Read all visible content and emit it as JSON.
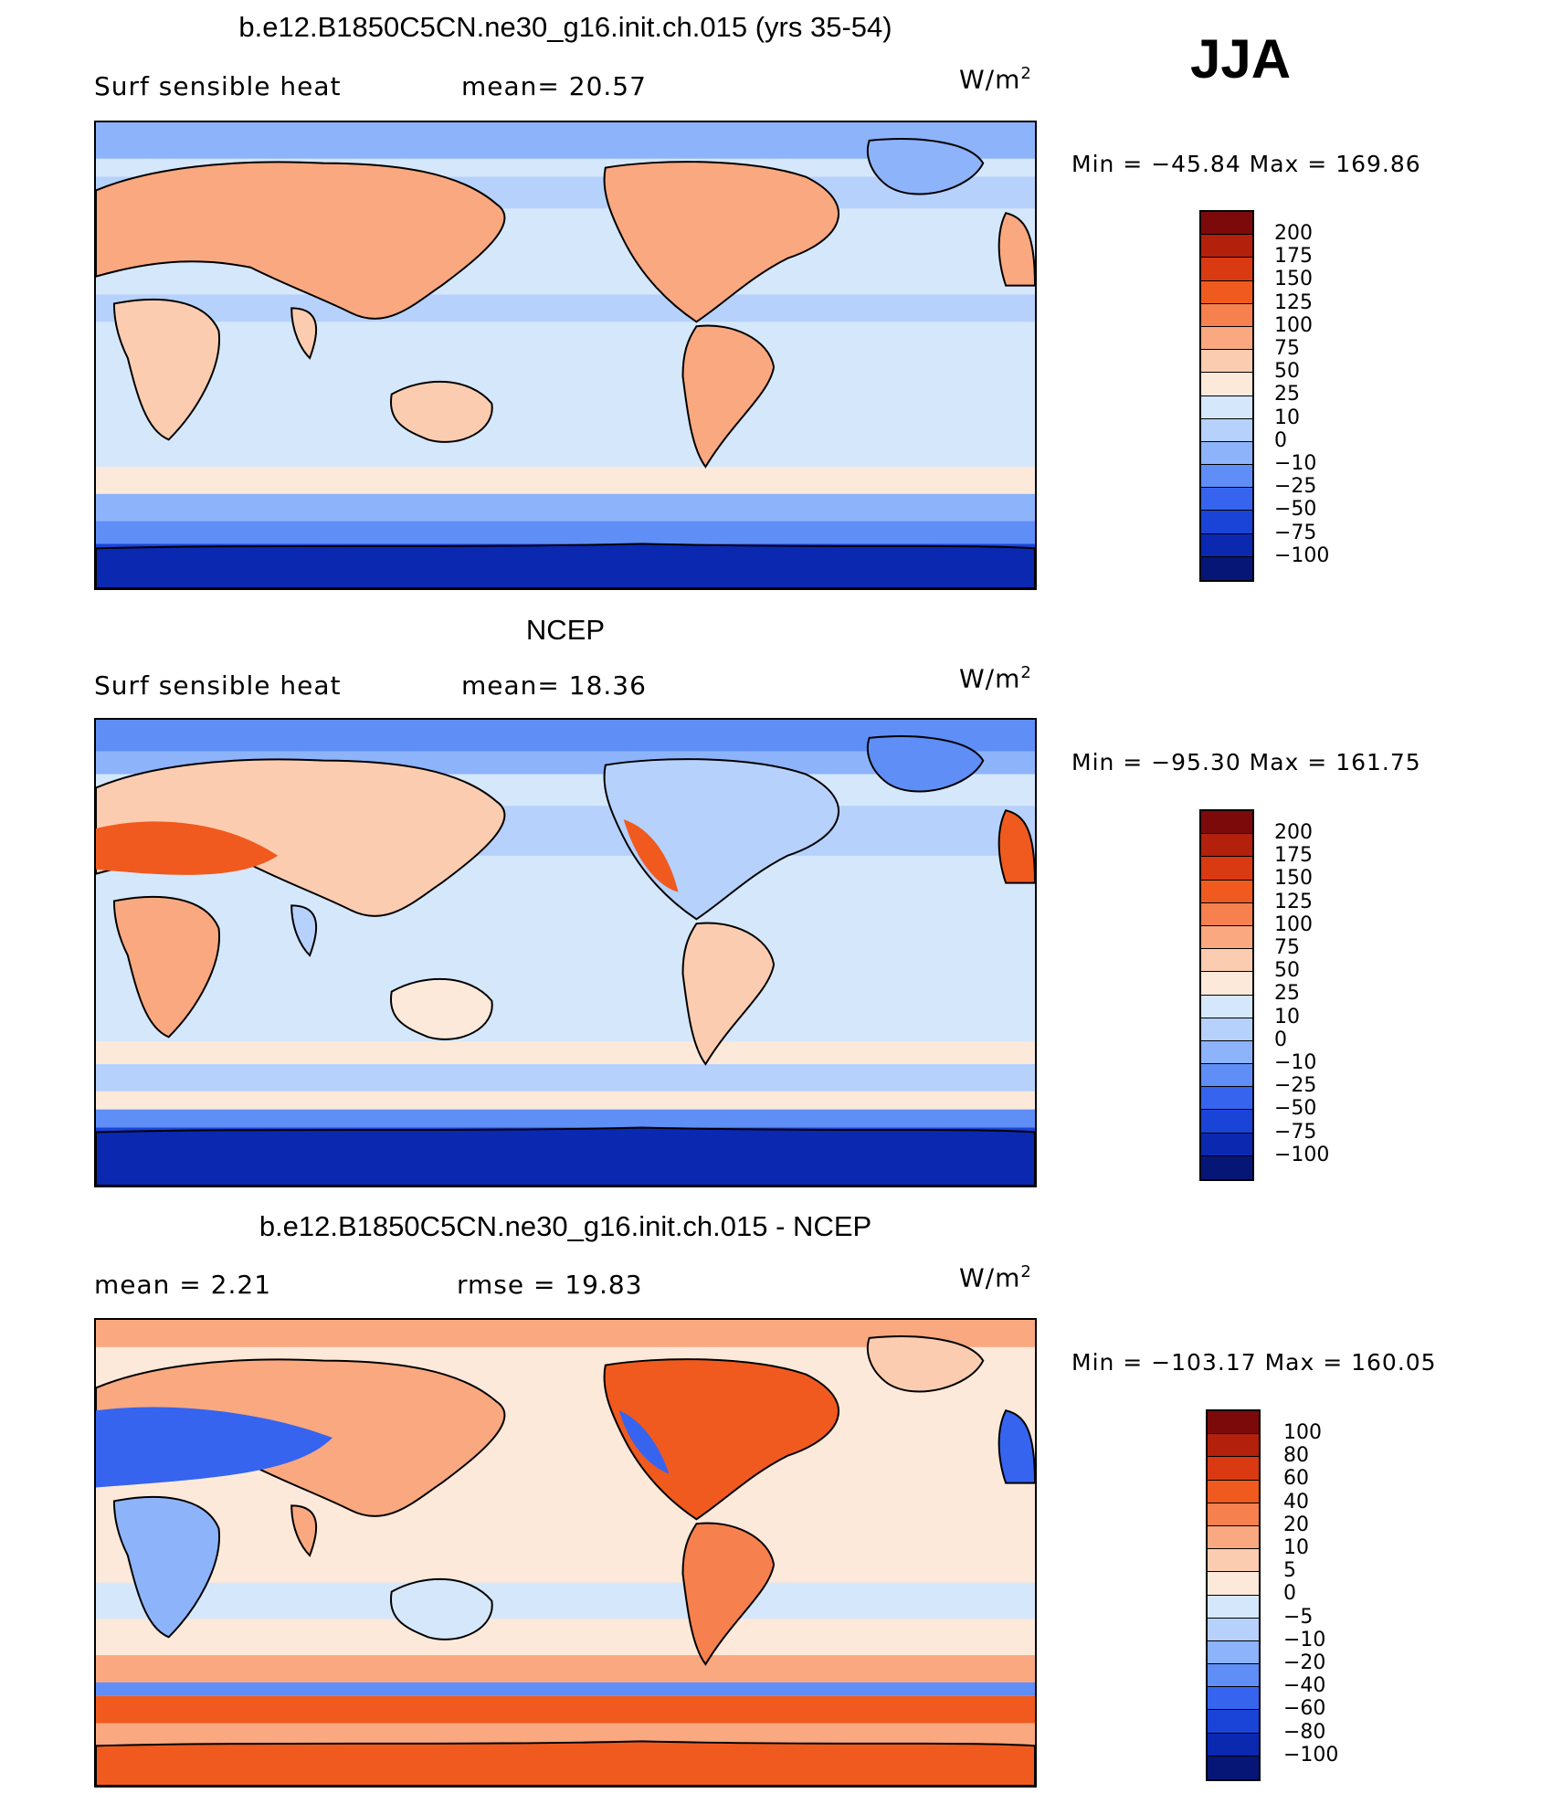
{
  "season": "JJA",
  "panels": [
    {
      "title": "b.e12.B1850C5CN.ne30_g16.init.ch.015 (yrs 35-54)",
      "left_label": "Surf  sensible  heat",
      "center_label": "mean=   20.57",
      "units": "W/m",
      "units_sup": "2",
      "minmax": "Min  =  −45.84  Max  =  169.86",
      "colorbar_labels": [
        "200",
        "175",
        "150",
        "125",
        "100",
        "75",
        "50",
        "25",
        "10",
        "0",
        "−10",
        "−25",
        "−50",
        "−75",
        "−100"
      ],
      "colorbar_colors": [
        "#7d0a0a",
        "#b3200c",
        "#d93a12",
        "#f05a1e",
        "#f6804e",
        "#f9a880",
        "#fcccb0",
        "#fde9da",
        "#d5e7fb",
        "#b6d1fb",
        "#8db3fa",
        "#5f8ef7",
        "#3664ef",
        "#1a44d8",
        "#0a28b0",
        "#061676"
      ]
    },
    {
      "title": "NCEP",
      "left_label": "Surf  sensible  heat",
      "center_label": "mean=   18.36",
      "units": "W/m",
      "units_sup": "2",
      "minmax": "Min  =  −95.30  Max  =  161.75",
      "colorbar_labels": [
        "200",
        "175",
        "150",
        "125",
        "100",
        "75",
        "50",
        "25",
        "10",
        "0",
        "−10",
        "−25",
        "−50",
        "−75",
        "−100"
      ],
      "colorbar_colors": [
        "#7d0a0a",
        "#b3200c",
        "#d93a12",
        "#f05a1e",
        "#f6804e",
        "#f9a880",
        "#fcccb0",
        "#fde9da",
        "#d5e7fb",
        "#b6d1fb",
        "#8db3fa",
        "#5f8ef7",
        "#3664ef",
        "#1a44d8",
        "#0a28b0",
        "#061676"
      ]
    },
    {
      "title": "b.e12.B1850C5CN.ne30_g16.init.ch.015 - NCEP",
      "left_label": "mean  =     2.21",
      "center_label": "rmse  =    19.83",
      "units": "W/m",
      "units_sup": "2",
      "minmax": "Min  =  −103.17  Max  =  160.05",
      "colorbar_labels": [
        "100",
        "80",
        "60",
        "40",
        "20",
        "10",
        "5",
        "0",
        "−5",
        "−10",
        "−20",
        "−40",
        "−60",
        "−80",
        "−100"
      ],
      "colorbar_colors": [
        "#7d0a0a",
        "#b3200c",
        "#d93a12",
        "#f05a1e",
        "#f6804e",
        "#f9a880",
        "#fcccb0",
        "#fde9da",
        "#d5e7fb",
        "#b6d1fb",
        "#8db3fa",
        "#5f8ef7",
        "#3664ef",
        "#1a44d8",
        "#0a28b0",
        "#061676"
      ]
    }
  ],
  "colors": {
    "ocean_light": "#d5e7fb",
    "ocean_mid": "#b6d1fb",
    "polar_dark": "#1a44d8",
    "land_warm": "#f9a880",
    "land_hot": "#f05a1e"
  }
}
